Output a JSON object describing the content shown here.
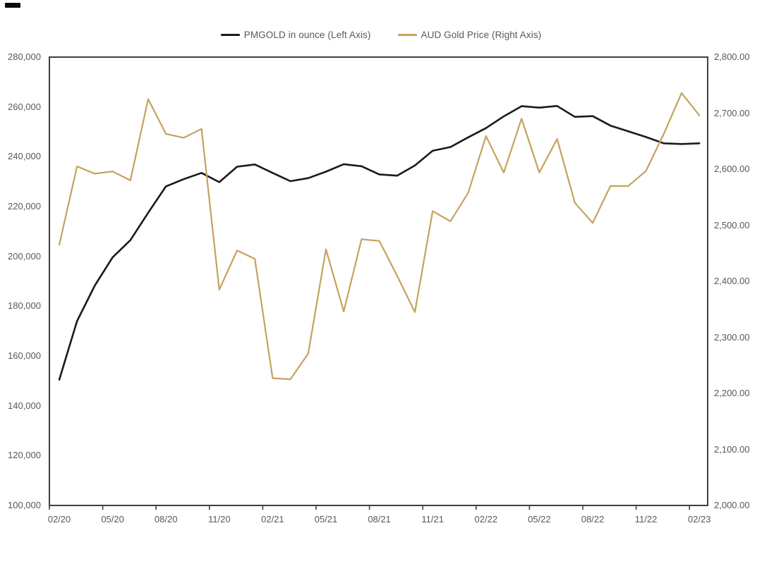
{
  "chart_data": {
    "type": "line",
    "title": "",
    "grid": false,
    "legend_position": "top",
    "background": "#ffffff",
    "axis_color": "#3f3f3f",
    "text_color": "#595959",
    "x_interval": "monthly",
    "x_categories": [
      "02/20",
      "03/20",
      "04/20",
      "05/20",
      "06/20",
      "07/20",
      "08/20",
      "09/20",
      "10/20",
      "11/20",
      "12/20",
      "01/21",
      "02/21",
      "03/21",
      "04/21",
      "05/21",
      "06/21",
      "07/21",
      "08/21",
      "09/21",
      "10/21",
      "11/21",
      "12/21",
      "01/22",
      "02/22",
      "03/22",
      "04/22",
      "05/22",
      "06/22",
      "07/22",
      "08/22",
      "09/22",
      "10/22",
      "11/22",
      "12/22",
      "01/23",
      "02/23"
    ],
    "x_tick_labels": [
      "02/20",
      "05/20",
      "08/20",
      "11/20",
      "02/21",
      "05/21",
      "08/21",
      "11/21",
      "02/22",
      "05/22",
      "08/22",
      "11/22",
      "02/23"
    ],
    "left_axis": {
      "min": 100000,
      "max": 280000,
      "step": 20000,
      "tick_labels": [
        "280,000",
        "260,000",
        "240,000",
        "220,000",
        "200,000",
        "180,000",
        "160,000",
        "140,000",
        "120,000",
        "100,000"
      ]
    },
    "right_axis": {
      "min": 2000,
      "max": 2800,
      "step": 100,
      "tick_labels": [
        "2,800.00",
        "2,700.00",
        "2,600.00",
        "2,500.00",
        "2,400.00",
        "2,300.00",
        "2,200.00",
        "2,100.00",
        "2,000.00"
      ]
    },
    "series": [
      {
        "id": "pmgold",
        "name": "PMGOLD in ounce (Left Axis)",
        "axis": "left",
        "color": "#1a1a1a",
        "width": 2.6,
        "values": [
          150500,
          174000,
          188300,
          199600,
          206500,
          217500,
          228100,
          231000,
          233500,
          229800,
          236000,
          236900,
          233500,
          230200,
          231400,
          234000,
          237000,
          236200,
          232900,
          232400,
          236500,
          242400,
          243900,
          247800,
          251500,
          256200,
          260300,
          259700,
          260400,
          256000,
          256300,
          252500,
          250200,
          247900,
          245400,
          245100,
          245400
        ]
      },
      {
        "id": "aud-gold",
        "name": "AUD Gold Price (Right Axis)",
        "axis": "right",
        "color": "#c3a35c",
        "width": 2.2,
        "values": [
          2465,
          2605,
          2592,
          2596,
          2580,
          2725,
          2663,
          2656,
          2672,
          2385,
          2455,
          2440,
          2227,
          2225,
          2271,
          2457,
          2346,
          2475,
          2472,
          2410,
          2345,
          2525,
          2507,
          2558,
          2659,
          2594,
          2690,
          2594,
          2654,
          2540,
          2504,
          2570,
          2570,
          2597,
          2663,
          2736,
          2696
        ]
      }
    ]
  }
}
